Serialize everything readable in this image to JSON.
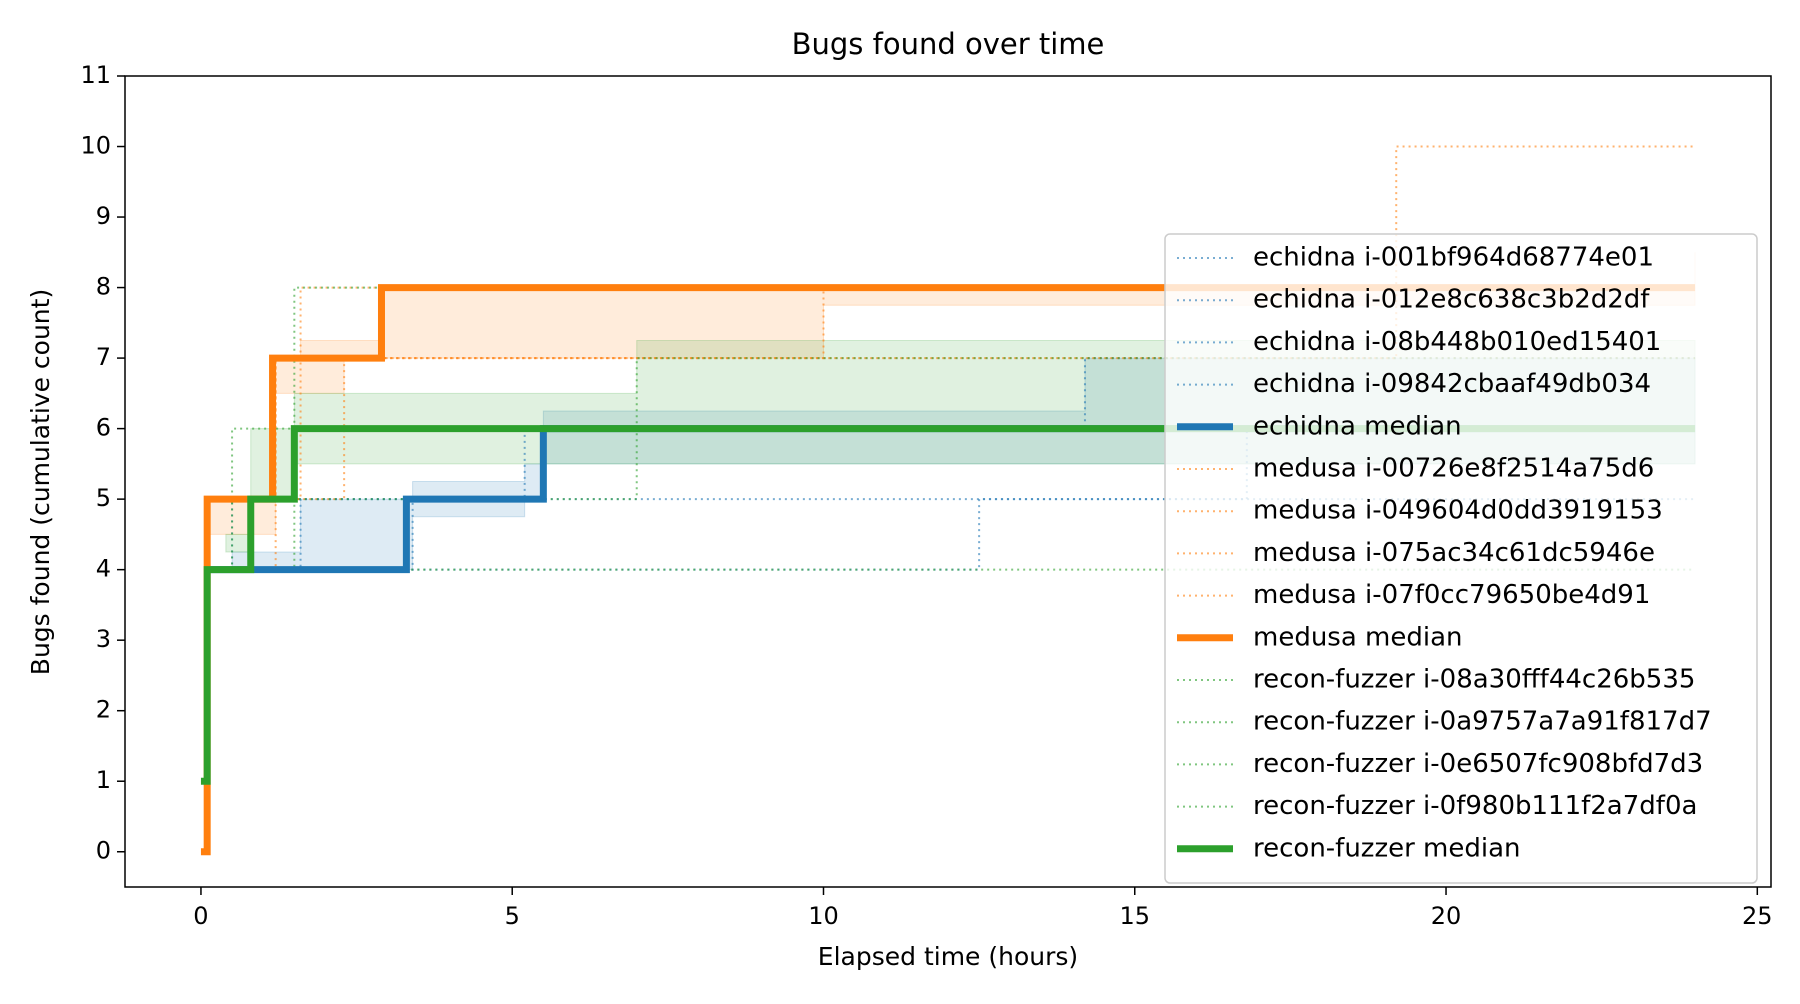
{
  "chart_data": {
    "type": "step",
    "title": "Bugs found over time",
    "x_label": "Elapsed time (hours)",
    "y_label": "Bugs found (cumulative count)",
    "xlim": [
      -1.22,
      25.22
    ],
    "xticks": [
      0,
      5,
      10,
      15,
      20,
      25
    ],
    "ylim": [
      -0.5,
      11
    ],
    "yticks": [
      0,
      1,
      2,
      3,
      4,
      5,
      6,
      7,
      8,
      9,
      10,
      11
    ],
    "legend": "upper right",
    "series": [
      {
        "name": "echidna i-001bf964d68774e01",
        "color": "#1f77b4",
        "style": "dotted",
        "x": [
          0.2,
          0.5,
          5.2,
          24
        ],
        "values": [
          4,
          5,
          6,
          6
        ]
      },
      {
        "name": "echidna i-012e8c638c3b2d2df",
        "color": "#1f77b4",
        "style": "dotted",
        "x": [
          0.3,
          12.5,
          24
        ],
        "values": [
          4,
          5,
          5
        ]
      },
      {
        "name": "echidna i-08b448b010ed15401",
        "color": "#1f77b4",
        "style": "dotted",
        "x": [
          0.2,
          1.6,
          5.5,
          14.2,
          24
        ],
        "values": [
          4,
          5,
          6,
          7,
          7
        ]
      },
      {
        "name": "echidna i-09842cbaaf49db034",
        "color": "#1f77b4",
        "style": "dotted",
        "x": [
          0.2,
          3.4,
          16.8
        ],
        "values": [
          4,
          5,
          6
        ]
      },
      {
        "name": "echidna median",
        "color": "#1f77b4",
        "style": "solid",
        "x": [
          0.1,
          3.3,
          5.5,
          24
        ],
        "values": [
          4,
          5,
          6,
          6
        ],
        "band": {
          "x": [
            0.5,
            1.6,
            3.4,
            5.2,
            5.5,
            14.2,
            24
          ],
          "lower": [
            4,
            4,
            4.75,
            5,
            5.5,
            5.5,
            5.5
          ],
          "upper": [
            4.25,
            5,
            5.25,
            5.5,
            6.25,
            7,
            7
          ]
        }
      },
      {
        "name": "medusa i-00726e8f2514a75d6",
        "color": "#ff7f0e",
        "style": "dotted",
        "x": [
          0.1,
          1.6,
          24
        ],
        "values": [
          5,
          8,
          8
        ]
      },
      {
        "name": "medusa i-049604d0dd3919153",
        "color": "#ff7f0e",
        "style": "dotted",
        "x": [
          0.1,
          1.2,
          10,
          24
        ],
        "values": [
          5,
          7,
          8,
          8
        ]
      },
      {
        "name": "medusa i-075ac34c61dc5946e",
        "color": "#ff7f0e",
        "style": "dotted",
        "x": [
          0.1,
          2.3,
          19.2,
          24
        ],
        "values": [
          5,
          7,
          10,
          10
        ]
      },
      {
        "name": "medusa i-07f0cc79650be4d91",
        "color": "#ff7f0e",
        "style": "dotted",
        "x": [
          0.1,
          1.2,
          24
        ],
        "values": [
          4,
          7,
          7
        ]
      },
      {
        "name": "medusa median",
        "color": "#ff7f0e",
        "style": "solid",
        "x": [
          0,
          0.1,
          1.15,
          2.9,
          24
        ],
        "values": [
          0,
          5,
          7,
          8,
          8
        ],
        "band": {
          "x": [
            0.1,
            1.2,
            1.6,
            2.3,
            2.9,
            10,
            24
          ],
          "lower": [
            4.5,
            6.5,
            6.5,
            7,
            7,
            7.75,
            7.75
          ],
          "upper": [
            5,
            7,
            7.25,
            7.25,
            8,
            8,
            8.5
          ]
        }
      },
      {
        "name": "recon-fuzzer i-08a30fff44c26b535",
        "color": "#2ca02c",
        "style": "dotted",
        "x": [
          0.1,
          0.5,
          1.5,
          24
        ],
        "values": [
          4,
          6,
          8,
          8
        ]
      },
      {
        "name": "recon-fuzzer i-0a9757a7a91f817d7",
        "color": "#2ca02c",
        "style": "dotted",
        "x": [
          0.1,
          0.8,
          7,
          24
        ],
        "values": [
          4,
          5,
          7,
          7
        ]
      },
      {
        "name": "recon-fuzzer i-0e6507fc908bfd7d3",
        "color": "#2ca02c",
        "style": "dotted",
        "x": [
          0.1,
          1.5,
          24
        ],
        "values": [
          4,
          6,
          6
        ]
      },
      {
        "name": "recon-fuzzer i-0f980b111f2a7df0a",
        "color": "#2ca02c",
        "style": "dotted",
        "x": [
          0.1,
          24
        ],
        "values": [
          4,
          4
        ]
      },
      {
        "name": "recon-fuzzer median",
        "color": "#2ca02c",
        "style": "solid",
        "x": [
          0,
          0.1,
          0.8,
          1.5,
          24
        ],
        "values": [
          1,
          4,
          5,
          6,
          6
        ],
        "band": {
          "x": [
            0.4,
            0.8,
            1.5,
            7,
            24
          ],
          "lower": [
            4.25,
            5,
            5.5,
            5.5,
            5.5
          ],
          "upper": [
            4.5,
            6,
            6.5,
            7.25,
            7.25
          ]
        }
      }
    ]
  }
}
